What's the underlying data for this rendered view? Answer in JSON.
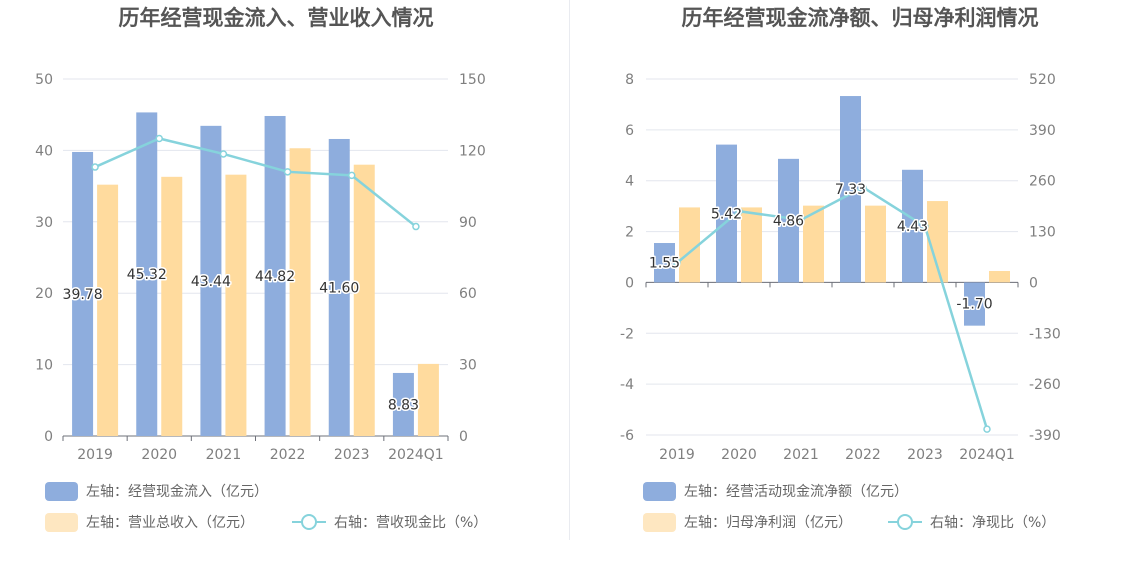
{
  "charts": [
    {
      "id": "left",
      "title": "历年经营现金流入、营业收入情况",
      "categories": [
        "2019",
        "2020",
        "2021",
        "2022",
        "2023",
        "2024Q1"
      ],
      "left_axis": {
        "ticks": [
          "0",
          "10",
          "20",
          "30",
          "40",
          "50"
        ],
        "min": 0,
        "max": 50
      },
      "right_axis": {
        "ticks": [
          "0",
          "30",
          "60",
          "90",
          "120",
          "150"
        ],
        "min": 0,
        "max": 150
      },
      "legend": [
        {
          "label": "左轴：经营现金流入（亿元）",
          "color": "#8eaddd",
          "kind": "bar"
        },
        {
          "label": "左轴：营业总收入（亿元）",
          "color": "#fee7c1",
          "kind": "bar"
        },
        {
          "label": "右轴：营收现金比（%）",
          "color": "#86d3dc",
          "kind": "line"
        }
      ]
    },
    {
      "id": "right",
      "title": "历年经营现金流净额、归母净利润情况",
      "categories": [
        "2019",
        "2020",
        "2021",
        "2022",
        "2023",
        "2024Q1"
      ],
      "left_axis": {
        "ticks": [
          "-6",
          "-4",
          "-2",
          "0",
          "2",
          "4",
          "6",
          "8"
        ],
        "min": -6,
        "max": 8
      },
      "right_axis": {
        "ticks": [
          "-390",
          "-260",
          "-130",
          "0",
          "130",
          "260",
          "390",
          "520"
        ],
        "min": -390,
        "max": 520
      },
      "legend": [
        {
          "label": "左轴：经营活动现金流净额（亿元）",
          "color": "#8eaddd",
          "kind": "bar"
        },
        {
          "label": "左轴：归母净利润（亿元）",
          "color": "#fee7c1",
          "kind": "bar"
        },
        {
          "label": "右轴：净现比（%）",
          "color": "#86d3dc",
          "kind": "line"
        }
      ]
    }
  ],
  "colors": {
    "bar1": "#8eaddd",
    "bar2": "#ffdb9e",
    "line": "#86d3dc",
    "grid": "#e3e6ee",
    "axis": "#6e7079"
  },
  "chart_data": [
    {
      "type": "bar",
      "title": "历年经营现金流入、营业收入情况",
      "categories": [
        "2019",
        "2020",
        "2021",
        "2022",
        "2023",
        "2024Q1"
      ],
      "series": [
        {
          "name": "左轴：经营现金流入（亿元）",
          "axis": "left",
          "type": "bar",
          "values": [
            39.78,
            45.32,
            43.44,
            44.82,
            41.6,
            8.83
          ],
          "labels": [
            "39.78",
            "45.32",
            "43.44",
            "44.82",
            "41.60",
            "8.83"
          ]
        },
        {
          "name": "左轴：营业总收入（亿元）",
          "axis": "left",
          "type": "bar",
          "values": [
            35.2,
            36.3,
            36.6,
            40.3,
            38.0,
            10.1
          ]
        },
        {
          "name": "右轴：营收现金比（%）",
          "axis": "right",
          "type": "line",
          "values": [
            113,
            125,
            118.5,
            111,
            109.5,
            88
          ]
        }
      ],
      "ylim_left": [
        0,
        50
      ],
      "ylim_right": [
        0,
        150
      ],
      "grid": true,
      "legend_position": "bottom-left"
    },
    {
      "type": "bar",
      "title": "历年经营现金流净额、归母净利润情况",
      "categories": [
        "2019",
        "2020",
        "2021",
        "2022",
        "2023",
        "2024Q1"
      ],
      "series": [
        {
          "name": "左轴：经营活动现金流净额（亿元）",
          "axis": "left",
          "type": "bar",
          "values": [
            1.55,
            5.42,
            4.86,
            7.33,
            4.43,
            -1.7
          ],
          "labels": [
            "1.55",
            "5.42",
            "4.86",
            "7.33",
            "4.43",
            "-1.70"
          ]
        },
        {
          "name": "左轴：归母净利润（亿元）",
          "axis": "left",
          "type": "bar",
          "values": [
            2.95,
            2.95,
            3.02,
            3.02,
            3.2,
            0.45
          ]
        },
        {
          "name": "右轴：净现比（%）",
          "axis": "right",
          "type": "line",
          "values": [
            50,
            182,
            160,
            243,
            143,
            -375
          ]
        }
      ],
      "ylim_left": [
        -6,
        8
      ],
      "ylim_right": [
        -390,
        520
      ],
      "grid": true,
      "legend_position": "bottom-left"
    }
  ]
}
